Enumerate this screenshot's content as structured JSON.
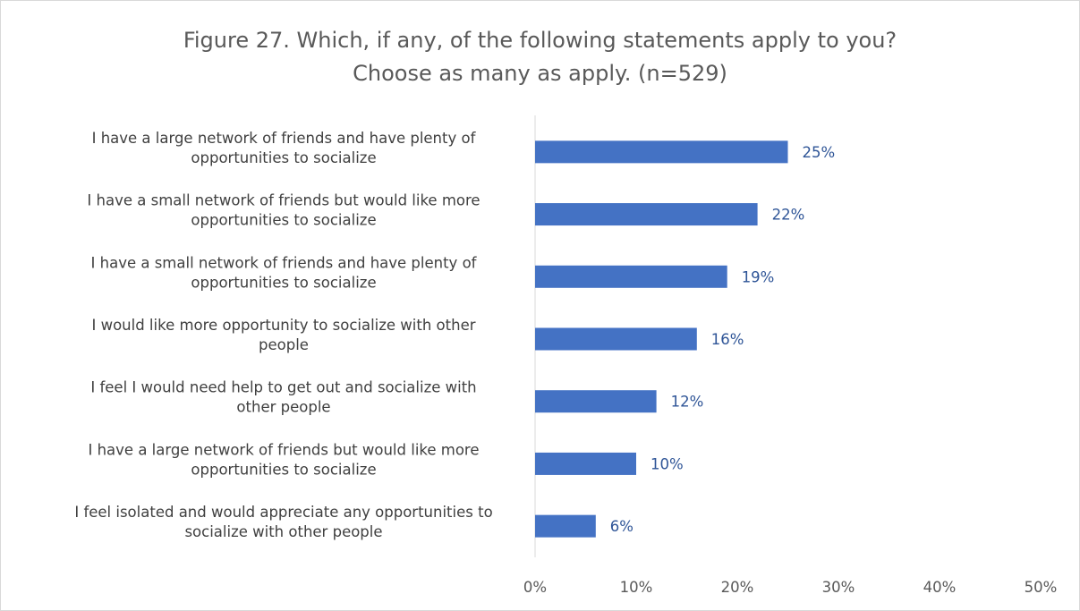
{
  "chart_data": {
    "type": "bar",
    "orientation": "horizontal",
    "title_lines": [
      "Figure 27. Which, if any, of the following statements apply to you?",
      "Choose as many as apply. (n=529)"
    ],
    "categories": [
      [
        "I have a large network of friends and have plenty of",
        "opportunities to socialize"
      ],
      [
        "I have a small network of friends but would like more",
        "opportunities to socialize"
      ],
      [
        "I have a small network of friends and have plenty of",
        "opportunities to socialize"
      ],
      [
        "I would like more opportunity to socialize with other",
        "people"
      ],
      [
        "I feel I would need help to get out and socialize with",
        "other people"
      ],
      [
        "I have a large network of friends but would like more",
        "opportunities to socialize"
      ],
      [
        "I feel isolated and would appreciate any opportunities to",
        "socialize with other people"
      ]
    ],
    "values": [
      0.25,
      0.22,
      0.19,
      0.16,
      0.12,
      0.1,
      0.06
    ],
    "data_labels": [
      "25%",
      "22%",
      "19%",
      "16%",
      "12%",
      "10%",
      "6%"
    ],
    "xlim": [
      0,
      0.5
    ],
    "x_ticks": [
      0,
      0.1,
      0.2,
      0.3,
      0.4,
      0.5
    ],
    "x_tick_labels": [
      "0%",
      "10%",
      "20%",
      "30%",
      "40%",
      "50%"
    ],
    "grid": false,
    "legend": "none",
    "bar_color": "#4472c4",
    "label_color": "#2f5597"
  }
}
